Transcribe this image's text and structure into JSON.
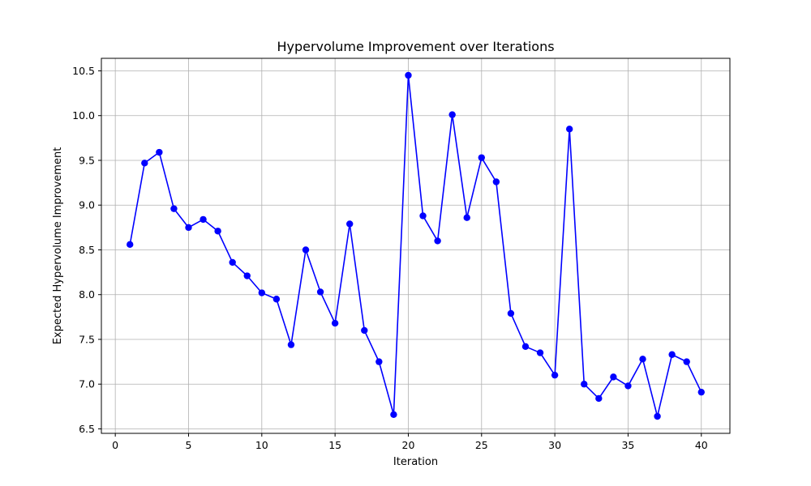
{
  "chart_data": {
    "type": "line",
    "title": "Hypervolume Improvement over Iterations",
    "xlabel": "Iteration",
    "ylabel": "Expected Hypervolume Improvement",
    "xlim": [
      -0.95,
      41.95
    ],
    "ylim": [
      6.45,
      10.64
    ],
    "xticks": [
      0,
      5,
      10,
      15,
      20,
      25,
      30,
      35,
      40
    ],
    "yticks": [
      6.5,
      7.0,
      7.5,
      8.0,
      8.5,
      9.0,
      9.5,
      10.0,
      10.5
    ],
    "grid": true,
    "legend": "none",
    "line_color": "#0000ff",
    "marker_color": "#0000ff",
    "x": [
      1,
      2,
      3,
      4,
      5,
      6,
      7,
      8,
      9,
      10,
      11,
      12,
      13,
      14,
      15,
      16,
      17,
      18,
      19,
      20,
      21,
      22,
      23,
      24,
      25,
      26,
      27,
      28,
      29,
      30,
      31,
      32,
      33,
      34,
      35,
      36,
      37,
      38,
      39,
      40
    ],
    "series": [
      {
        "values": [
          8.56,
          9.47,
          9.59,
          8.96,
          8.75,
          8.84,
          8.71,
          8.36,
          8.21,
          8.02,
          7.95,
          7.44,
          8.5,
          8.03,
          7.68,
          8.79,
          7.6,
          7.25,
          6.66,
          10.45,
          8.88,
          8.6,
          10.01,
          8.86,
          9.53,
          9.26,
          7.79,
          7.42,
          7.35,
          7.1,
          9.85,
          7.0,
          6.84,
          7.08,
          6.98,
          7.28,
          6.64,
          7.33,
          7.25,
          6.91
        ]
      }
    ]
  }
}
